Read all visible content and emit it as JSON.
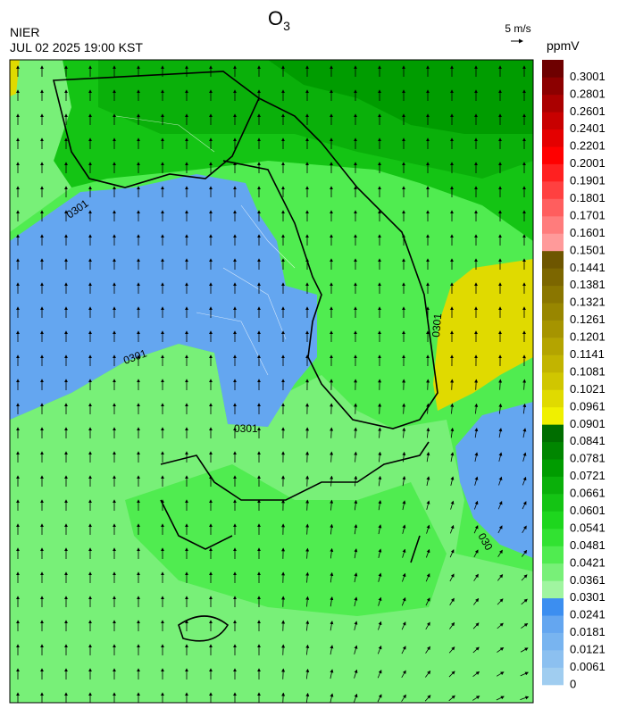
{
  "header": {
    "title": "O",
    "title_sub": "3",
    "agency": "NIER",
    "datetime": "JUL 02 2025 19:00 KST",
    "wind_scale": "5 m/s"
  },
  "colorbar": {
    "unit": "ppmV",
    "labels": [
      0,
      0.0061,
      0.0121,
      0.0181,
      0.0241,
      0.0301,
      0.0361,
      0.0421,
      0.0481,
      0.0541,
      0.0601,
      0.0661,
      0.0721,
      0.0781,
      0.0841,
      0.0901,
      0.0961,
      0.1021,
      0.1081,
      0.1141,
      0.1201,
      0.1261,
      0.1321,
      0.1381,
      0.1441,
      0.1501,
      0.1601,
      0.1701,
      0.1801,
      0.1901,
      0.2001,
      0.2201,
      0.2401,
      0.2601,
      0.2801,
      0.3001
    ],
    "colors": [
      "#a0cdf0",
      "#8cc0f0",
      "#78b4f0",
      "#64a6f0",
      "#3c8ef0",
      "#a0f5a0",
      "#78f078",
      "#50ec50",
      "#32e232",
      "#1ed61e",
      "#14c414",
      "#0ab00a",
      "#009c00",
      "#008600",
      "#006e00",
      "#f0f000",
      "#e0da00",
      "#d0c600",
      "#c2b400",
      "#b4a400",
      "#a69400",
      "#988600",
      "#8a7600",
      "#7c6600",
      "#6e5600",
      "#ff9a9a",
      "#ff7c7c",
      "#ff5e5e",
      "#ff4040",
      "#ff2020",
      "#ff0000",
      "#e40000",
      "#c80000",
      "#aa0000",
      "#8c0000",
      "#6e0000"
    ]
  },
  "contour_labels": [
    "0301",
    "0301",
    "0301",
    "0301",
    "030"
  ]
}
